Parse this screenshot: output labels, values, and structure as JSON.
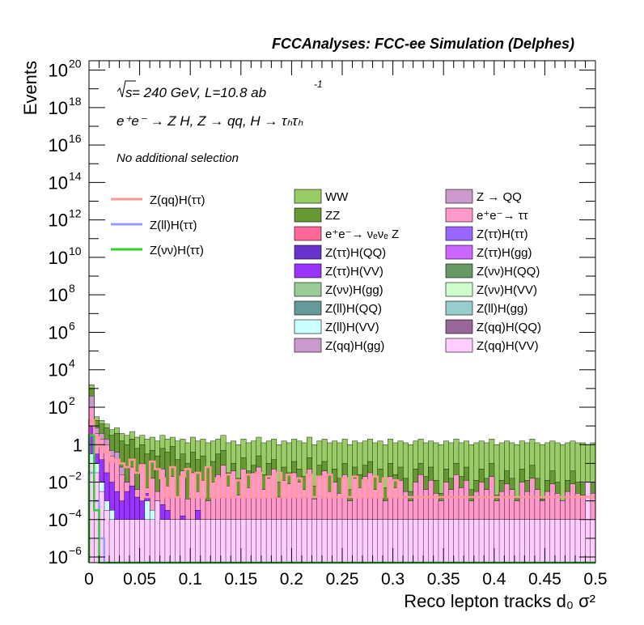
{
  "chart_data": {
    "type": "bar",
    "subtype": "stacked-histogram-log",
    "title": "FCCAnalyses: FCC-ee Simulation (Delphes)",
    "annotations": {
      "energy_prefix": "s",
      "energy_text": " = 240 GeV, L=10.8 ab",
      "energy_exp": "-1",
      "process": "e⁺e⁻ → Z H, Z → qq, H → τₕτₕ",
      "selection": "No additional selection"
    },
    "xlabel": "Reco lepton tracks d₀ σ²",
    "ylabel": "Events",
    "xlim": [
      0,
      0.5
    ],
    "ylim_log10": [
      -6.3,
      20.5
    ],
    "x_ticks": [
      {
        "v": 0,
        "label": "0"
      },
      {
        "v": 0.05,
        "label": "0.05"
      },
      {
        "v": 0.1,
        "label": "0.1"
      },
      {
        "v": 0.15,
        "label": "0.15"
      },
      {
        "v": 0.2,
        "label": "0.2"
      },
      {
        "v": 0.25,
        "label": "0.25"
      },
      {
        "v": 0.3,
        "label": "0.3"
      },
      {
        "v": 0.35,
        "label": "0.35"
      },
      {
        "v": 0.4,
        "label": "0.4"
      },
      {
        "v": 0.45,
        "label": "0.45"
      },
      {
        "v": 0.5,
        "label": "0.5"
      }
    ],
    "y_ticks": [
      {
        "exp": -6,
        "base": "10",
        "sup": "−6"
      },
      {
        "exp": -4,
        "base": "10",
        "sup": "−4"
      },
      {
        "exp": -2,
        "base": "10",
        "sup": "−2"
      },
      {
        "exp": 0,
        "base": "1",
        "sup": ""
      },
      {
        "exp": 2,
        "base": "10",
        "sup": "2"
      },
      {
        "exp": 4,
        "base": "10",
        "sup": "4"
      },
      {
        "exp": 6,
        "base": "10",
        "sup": "6"
      },
      {
        "exp": 8,
        "base": "10",
        "sup": "8"
      },
      {
        "exp": 10,
        "base": "10",
        "sup": "10"
      },
      {
        "exp": 12,
        "base": "10",
        "sup": "12"
      },
      {
        "exp": 14,
        "base": "10",
        "sup": "14"
      },
      {
        "exp": 16,
        "base": "10",
        "sup": "16"
      },
      {
        "exp": 18,
        "base": "10",
        "sup": "18"
      },
      {
        "exp": 20,
        "base": "10",
        "sup": "20"
      }
    ],
    "bins": {
      "n": 100,
      "width": 0.005
    },
    "stack_log10": {
      "WW": [
        3.2,
        1.5,
        1.3,
        1.1,
        0.8,
        0.9,
        0.6,
        0.5,
        0.7,
        0.4,
        0.5,
        0.3,
        0.4,
        0.2,
        0.5,
        0.3,
        0.4,
        0.2,
        0.3,
        0.1,
        0.4,
        0.2,
        0.3,
        0.1,
        0.2,
        0.3,
        0.5,
        0.1,
        0.2,
        0.0,
        0.3,
        0.1,
        0.2,
        0.4,
        0.1,
        0.2,
        0.3,
        0.0,
        0.2,
        0.1,
        0.3,
        0.2,
        0.1,
        0.4,
        0.0,
        0.2,
        0.3,
        0.1,
        0.2,
        0.1,
        0.3,
        0.0,
        0.2,
        0.1,
        0.2,
        0.3,
        0.1,
        0.2,
        0.0,
        0.3,
        0.1,
        0.2,
        0.1,
        0.0,
        0.2,
        0.3,
        0.1,
        0.2,
        0.1,
        0.0,
        0.2,
        0.1,
        0.3,
        0.1,
        0.2,
        0.0,
        0.1,
        0.2,
        0.1,
        0.3,
        0.0,
        0.1,
        0.2,
        0.1,
        0.0,
        0.2,
        0.1,
        0.3,
        0.1,
        0.0,
        0.1,
        0.2,
        0.1,
        0.0,
        0.1,
        0.2,
        0.1,
        0.1,
        0.0,
        0.1
      ],
      "ZZ": [
        3.0,
        1.3,
        1.1,
        0.9,
        0.5,
        0.6,
        0.2,
        0.0,
        0.3,
        -0.2,
        0.0,
        -0.5,
        -0.3,
        -0.6,
        -0.2,
        -0.4,
        -0.1,
        -0.8,
        -0.5,
        -1.0,
        -0.4,
        -0.8,
        -0.6,
        -1.2,
        -0.9,
        -0.5,
        -0.3,
        -1.5,
        -1.0,
        -1.8,
        -0.7,
        -1.4,
        -1.1,
        -0.6,
        -1.6,
        -1.0,
        -0.8,
        -2.0,
        -1.2,
        -1.5,
        -0.9,
        -1.3,
        -1.7,
        -0.7,
        -2.2,
        -1.1,
        -0.9,
        -1.6,
        -1.3,
        -1.8,
        -1.0,
        -2.4,
        -1.2,
        -1.6,
        -1.1,
        -0.9,
        -1.7,
        -1.3,
        -2.3,
        -1.0,
        -1.6,
        -1.2,
        -1.8,
        -2.5,
        -1.3,
        -1.0,
        -1.7,
        -1.2,
        -1.9,
        -2.6,
        -1.3,
        -1.8,
        -1.0,
        -1.7,
        -1.2,
        -2.4,
        -1.9,
        -1.3,
        -1.8,
        -1.0,
        -2.7,
        -1.9,
        -1.4,
        -1.8,
        -2.8,
        -1.3,
        -1.9,
        -1.1,
        -1.8,
        -2.9,
        -1.9,
        -1.4,
        -2.0,
        -3.0,
        -1.9,
        -1.4,
        -2.0,
        -2.1,
        -3.2,
        -2.0
      ],
      "Z(qq)H(gg)": [
        2.6,
        0.9,
        0.6,
        0.3,
        -0.3,
        -0.4,
        -1.2,
        -2.0,
        -1.5,
        -2.5,
        -2.2,
        -3.0,
        -2.8,
        -3.5,
        -3.2,
        -3.8,
        -3.6,
        -4.2,
        -4.0,
        -4.5,
        -4.3,
        -4.8,
        -4.6,
        -5.0,
        -5.0,
        -5.0,
        -5.0,
        -5.0,
        -5.0,
        -5.0,
        -5.0,
        -5.0,
        -5.0,
        -5.0,
        -5.0,
        -5.0,
        -5.0,
        -5.0,
        -5.0,
        -5.0,
        -5.0,
        -5.0,
        -5.0,
        -5.0,
        -5.0,
        -5.0,
        -5.0,
        -5.0,
        -5.0,
        -5.0,
        -5.0,
        -5.0,
        -5.0,
        -5.0,
        -5.0,
        -5.0,
        -5.0,
        -5.0,
        -5.0,
        -5.0,
        -5.0,
        -5.0,
        -5.0,
        -5.0,
        -5.0,
        -5.0,
        -5.0,
        -5.0,
        -5.0,
        -5.0,
        -5.0,
        -5.0,
        -5.0,
        -5.0,
        -5.0,
        -5.0,
        -5.0,
        -5.0,
        -5.0,
        -5.0,
        -5.0,
        -5.0,
        -5.0,
        -5.0,
        -5.0,
        -5.0,
        -5.0,
        -5.0,
        -5.0,
        -5.0,
        -5.0,
        -5.0,
        -5.0,
        -5.0,
        -5.0,
        -5.0,
        -5.0,
        -5.0,
        -5.0,
        -5.0
      ],
      "e⁺e⁻→ττ": [
        2.0,
        0.6,
        0.3,
        0.0,
        -0.6,
        -0.8,
        -1.6,
        -2.0,
        -1.2,
        -2.4,
        -1.0,
        -2.3,
        -1.8,
        -2.5,
        -1.3,
        -2.2,
        -1.7,
        -2.8,
        -1.4,
        -2.9,
        -1.5,
        -2.5,
        -1.9,
        -3.0,
        -2.0,
        -1.6,
        -1.1,
        -2.2,
        -1.4,
        -2.7,
        -1.3,
        -2.3,
        -1.5,
        -1.2,
        -2.4,
        -1.8,
        -1.3,
        -2.8,
        -1.9,
        -2.1,
        -1.5,
        -2.0,
        -2.4,
        -1.3,
        -2.9,
        -1.7,
        -1.4,
        -2.5,
        -2.0,
        -2.6,
        -1.6,
        -3.0,
        -1.8,
        -2.3,
        -1.7,
        -1.5,
        -2.4,
        -2.0,
        -3.0,
        -1.7,
        -2.3,
        -1.9,
        -2.5,
        -3.0,
        -2.0,
        -1.6,
        -2.4,
        -1.9,
        -2.6,
        -3.0,
        -2.0,
        -2.4,
        -1.6,
        -2.3,
        -1.9,
        -3.0,
        -2.5,
        -2.0,
        -2.4,
        -1.7,
        -3.0,
        -2.5,
        -2.1,
        -2.4,
        -3.0,
        -2.0,
        -2.5,
        -1.8,
        -2.4,
        -3.0,
        -2.5,
        -2.1,
        -2.6,
        -3.0,
        -2.5,
        -2.1,
        -2.6,
        -2.7,
        -3.0,
        -2.6
      ],
      "Z(ττ)H(VV)": [
        1.0,
        -0.5,
        -0.8,
        -1.5,
        -2.0,
        -2.5,
        -3.0,
        -2.5,
        -2.2,
        -2.8,
        -3.0,
        -2.6,
        -4.0,
        -3.0,
        -3.2,
        -3.5,
        -4.0,
        -4.0,
        -3.8,
        -4.0,
        -4.0,
        -3.5,
        -4.0,
        -4.2,
        -4.0,
        -4.0,
        -4.0,
        -4.0,
        -4.0,
        -4.0,
        -4.0,
        -4.0,
        -4.0,
        -4.0,
        -4.0,
        -4.0,
        -4.0,
        -4.0,
        -4.0,
        -4.0,
        -4.0,
        -4.0,
        -4.0,
        -4.0,
        -4.0,
        -4.0,
        -4.0,
        -4.0,
        -4.0,
        -4.0,
        -4.0,
        -4.0,
        -4.0,
        -4.0,
        -4.0,
        -4.0,
        -4.0,
        -4.0,
        -4.0,
        -4.0,
        -4.0,
        -4.0,
        -4.0,
        -4.0,
        -4.0,
        -4.0,
        -4.0,
        -4.0,
        -4.0,
        -4.0,
        -4.0,
        -4.0,
        -4.0,
        -4.0,
        -4.0,
        -4.0,
        -4.0,
        -4.0,
        -4.0,
        -4.0,
        -4.0,
        -4.0,
        -4.0,
        -4.0,
        -4.0,
        -4.0,
        -4.0,
        -4.0,
        -4.0,
        -4.0,
        -4.0,
        -4.0,
        -4.0,
        -4.0,
        -4.0,
        -4.0,
        -4.0,
        -4.0,
        -4.0,
        -4.0
      ],
      "Z(ll)H(VV)": [
        -0.5,
        -1.0,
        -2.0,
        -3.0,
        -3.5,
        -4.0,
        -4.0,
        -4.0,
        -4.0,
        -4.0,
        -4.0,
        -3.0,
        -3.5,
        -4.0,
        -4.0,
        -4.0,
        -4.0,
        -4.0,
        -4.0,
        -4.0,
        -4.0,
        -4.0,
        -4.0,
        -4.0,
        -4.0,
        -4.0,
        -4.0,
        -4.0,
        -4.0,
        -4.0,
        -4.0,
        -4.0,
        -4.0,
        -4.0,
        -4.0,
        -4.0,
        -4.0,
        -4.0,
        -4.0,
        -4.0,
        -4.0,
        -4.0,
        -4.0,
        -4.0,
        -4.0,
        -4.0,
        -4.0,
        -4.0,
        -4.0,
        -4.0,
        -4.0,
        -4.0,
        -4.0,
        -4.0,
        -4.0,
        -4.0,
        -4.0,
        -4.0,
        -4.0,
        -4.0,
        -4.0,
        -4.0,
        -4.0,
        -4.0,
        -4.0,
        -4.0,
        -4.0,
        -4.0,
        -4.0,
        -4.0,
        -4.0,
        -4.0,
        -4.0,
        -4.0,
        -4.0,
        -4.0,
        -4.0,
        -4.0,
        -4.0,
        -4.0,
        -4.0,
        -4.0,
        -4.0,
        -4.0,
        -4.0,
        -4.0,
        -4.0,
        -4.0,
        -4.0,
        -4.0,
        -4.0,
        -4.0,
        -4.0,
        -4.0,
        -4.0,
        -4.0,
        -4.0,
        -4.0,
        -4.0,
        -4.0
      ],
      "Z(qq)H(VV)": [
        -1.0,
        -1.5,
        -2.5,
        -3.5,
        -4.0,
        -4.0,
        -4.0,
        -4.0,
        -4.0,
        -4.0,
        -4.0,
        -4.0,
        -4.0,
        -3.0,
        -4.0,
        -4.0,
        -4.0,
        -4.0,
        -4.0,
        -4.0,
        -4.0,
        -4.0,
        -4.0,
        -4.0,
        -4.0,
        -4.0,
        -4.0,
        -4.0,
        -4.0,
        -4.0,
        -4.0,
        -4.0,
        -4.0,
        -4.0,
        -4.0,
        -4.0,
        -4.0,
        -4.0,
        -4.0,
        -4.0,
        -4.0,
        -4.0,
        -4.0,
        -4.0,
        -4.0,
        -4.0,
        -4.0,
        -4.0,
        -4.0,
        -4.0,
        -4.0,
        -4.0,
        -4.0,
        -4.0,
        -4.0,
        -4.0,
        -4.0,
        -4.0,
        -4.0,
        -4.0,
        -4.0,
        -4.0,
        -4.0,
        -4.0,
        -4.0,
        -4.0,
        -4.0,
        -4.0,
        -4.0,
        -4.0,
        -4.0,
        -4.0,
        -4.0,
        -4.0,
        -4.0,
        -4.0,
        -4.0,
        -4.0,
        -4.0,
        -4.0,
        -4.0,
        -4.0,
        -4.0,
        -4.0,
        -4.0,
        -4.0,
        -4.0,
        -4.0,
        -4.0,
        -4.0,
        -4.0,
        -4.0,
        -4.0,
        -4.0,
        -4.0,
        -4.0,
        -4.0,
        -4.0,
        -2.0,
        -4.0
      ]
    },
    "signal_lines_log10": {
      "Z(qq)H(ττ)": [
        1.3,
        0.4,
        -0.1,
        -0.4,
        -0.9,
        -0.8,
        -1.0,
        -1.2,
        -0.8,
        -1.5,
        -1.1,
        -2.8,
        -0.9,
        -1.3,
        -1.8,
        -2.8,
        -1.2,
        -2.8,
        -1.7,
        -1.3,
        -2.8,
        -1.5,
        -2.8,
        -1.2,
        -2.8,
        -1.8,
        -2.8,
        -1.6,
        -2.8,
        -1.9,
        -2.8,
        -1.6,
        -2.8,
        -1.5,
        -2.8,
        -1.7,
        -2.8,
        -1.5,
        -2.8,
        -1.6,
        -2.8,
        -1.8,
        -2.8,
        -1.6,
        -2.8,
        -1.7,
        -2.8,
        -1.6,
        -2.8,
        -2.8,
        -1.8,
        -2.8,
        -1.7,
        -2.8,
        -1.9,
        -2.8,
        -1.7,
        -2.8,
        -1.8,
        -2.8,
        -1.9,
        -2.8,
        -2.8,
        -2.8,
        -2.8,
        -2.8,
        -2.8,
        -2.8,
        -2.8,
        -2.8,
        -2.8,
        -2.8,
        -2.8,
        -2.8,
        -2.8,
        -2.8,
        -2.8,
        -2.8,
        -2.8,
        -2.8,
        -2.8,
        -2.8,
        -2.8,
        -2.8,
        -2.8,
        -2.8,
        -2.8,
        -2.8,
        -2.8,
        -2.8,
        -2.8,
        -2.8,
        -2.8,
        -2.8,
        -2.8,
        -2.8,
        -2.8,
        -2.8,
        -2.8,
        -2.8
      ],
      "Z(ll)H(ττ)": [
        -1.5,
        -3.0,
        -5.0,
        -6.3,
        -6.3,
        -6.3,
        -6.3,
        -6.3,
        -6.3,
        -6.3,
        -6.3,
        -6.3,
        -6.3,
        -6.3,
        -6.3,
        -6.3,
        -6.3,
        -6.3,
        -6.3,
        -6.3,
        -6.3,
        -6.3,
        -6.3,
        -6.3,
        -6.3,
        -6.3,
        -6.3,
        -6.3,
        -6.3,
        -6.3,
        -6.3,
        -6.3,
        -6.3,
        -6.3,
        -6.3,
        -6.3,
        -6.3,
        -6.3,
        -6.3,
        -6.3,
        -6.3,
        -6.3,
        -6.3,
        -6.3,
        -6.3,
        -6.3,
        -6.3,
        -6.3,
        -6.3,
        -6.3,
        -6.3,
        -6.3,
        -6.3,
        -6.3,
        -6.3,
        -6.3,
        -6.3,
        -6.3,
        -6.3,
        -6.3,
        -6.3,
        -6.3,
        -6.3,
        -6.3,
        -6.3,
        -6.3,
        -6.3,
        -6.3,
        -6.3,
        -6.3,
        -6.3,
        -6.3,
        -6.3,
        -6.3,
        -6.3,
        -6.3,
        -6.3,
        -6.3,
        -6.3,
        -6.3,
        -6.3,
        -6.3,
        -6.3,
        -6.3,
        -6.3,
        -6.3,
        -6.3,
        -6.3,
        -6.3,
        -6.3,
        -6.3,
        -6.3,
        -6.3,
        -6.3,
        -6.3,
        -6.3,
        -6.3,
        -6.3,
        -6.3,
        -6.3
      ],
      "Z(νν)H(ττ)": [
        0.5,
        -3.5,
        -6.3,
        -6.3,
        -6.3,
        -6.3,
        -6.3,
        -6.3,
        -6.3,
        -6.3,
        -6.3,
        -6.3,
        -6.3,
        -6.3,
        -6.3,
        -6.3,
        -6.3,
        -6.3,
        -6.3,
        -6.3,
        -6.3,
        -6.3,
        -6.3,
        -6.3,
        -6.3,
        -6.3,
        -6.3,
        -6.3,
        -6.3,
        -6.3,
        -6.3,
        -6.3,
        -6.3,
        -6.3,
        -6.3,
        -6.3,
        -6.3,
        -6.3,
        -6.3,
        -6.3,
        -6.3,
        -6.3,
        -6.3,
        -6.3,
        -6.3,
        -6.3,
        -6.3,
        -6.3,
        -6.3,
        -6.3,
        -6.3,
        -6.3,
        -6.3,
        -6.3,
        -6.3,
        -6.3,
        -6.3,
        -6.3,
        -6.3,
        -6.3,
        -6.3,
        -6.3,
        -6.3,
        -6.3,
        -6.3,
        -6.3,
        -6.3,
        -6.3,
        -6.3,
        -6.3,
        -6.3,
        -6.3,
        -6.3,
        -6.3,
        -6.3,
        -6.3,
        -6.3,
        -6.3,
        -6.3,
        -6.3,
        -6.3,
        -6.3,
        -6.3,
        -6.3,
        -6.3,
        -6.3,
        -6.3,
        -6.3,
        -6.3,
        -6.3,
        -6.3,
        -6.3,
        -6.3,
        -6.3,
        -6.3,
        -6.3,
        -6.3,
        -6.3,
        -6.3,
        -6.3
      ]
    },
    "stack_colors": {
      "WW": "#99cc66",
      "ZZ": "#669933",
      "Z(qq)H(gg)": "#cc99cc",
      "e⁺e⁻→ττ": "#ff99cc",
      "Z(ττ)H(VV)": "#9933ff",
      "Z(ll)H(VV)": "#ccffff",
      "Z(qq)H(VV)": "#ffccff"
    },
    "legend_lines": [
      {
        "label": "Z(qq)H(ττ)",
        "color": "#ff9999"
      },
      {
        "label": "Z(ll)H(ττ)",
        "color": "#9999ff"
      },
      {
        "label": "Z(νν)H(ττ)",
        "color": "#33cc33"
      }
    ],
    "legend_boxes": [
      {
        "label": "WW",
        "color": "#99cc66"
      },
      {
        "label": "Z → QQ",
        "color": "#cc99cc"
      },
      {
        "label": "ZZ",
        "color": "#669933"
      },
      {
        "label": "e⁺e⁻→ ττ",
        "color": "#ff99cc"
      },
      {
        "label": "e⁺e⁻→ νₑνₑ Z",
        "color": "#ff6699"
      },
      {
        "label": "Z(ττ)H(ττ)",
        "color": "#9966ff"
      },
      {
        "label": "Z(ττ)H(QQ)",
        "color": "#6633cc"
      },
      {
        "label": "Z(ττ)H(gg)",
        "color": "#cc66ff"
      },
      {
        "label": "Z(ττ)H(VV)",
        "color": "#9933ff"
      },
      {
        "label": "Z(νν)H(QQ)",
        "color": "#669966"
      },
      {
        "label": "Z(νν)H(gg)",
        "color": "#99cc99"
      },
      {
        "label": "Z(νν)H(VV)",
        "color": "#ccffcc"
      },
      {
        "label": "Z(ll)H(QQ)",
        "color": "#669999"
      },
      {
        "label": "Z(ll)H(gg)",
        "color": "#99cccc"
      },
      {
        "label": "Z(ll)H(VV)",
        "color": "#ccffff"
      },
      {
        "label": "Z(qq)H(QQ)",
        "color": "#996699"
      },
      {
        "label": "Z(qq)H(gg)",
        "color": "#cc99cc"
      },
      {
        "label": "Z(qq)H(VV)",
        "color": "#ffccff"
      }
    ]
  }
}
